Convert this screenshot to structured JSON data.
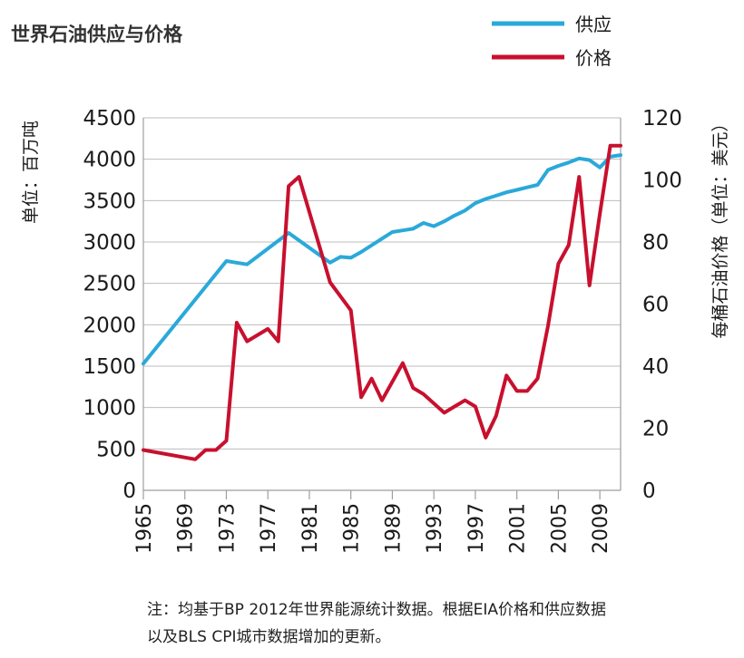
{
  "chart_data": {
    "type": "line",
    "title": "世界石油供应与价格",
    "ylabel_left": "单位：百万吨",
    "ylabel_right": "每桶石油价格（单位：美元）",
    "ylim_left": [
      0,
      4500
    ],
    "ylim_right": [
      0,
      120
    ],
    "yticks_left": [
      0,
      500,
      1000,
      1500,
      2000,
      2500,
      3000,
      3500,
      4000,
      4500
    ],
    "yticks_right": [
      0,
      20,
      40,
      60,
      80,
      100,
      120
    ],
    "xlim": [
      1965,
      2011
    ],
    "xticks": [
      1965,
      1969,
      1973,
      1977,
      1981,
      1985,
      1989,
      1993,
      1997,
      2001,
      2005,
      2009
    ],
    "grid": "horizontal",
    "legend": [
      {
        "name": "供应",
        "color": "#2aa9d9"
      },
      {
        "name": "价格",
        "color": "#c8102e"
      }
    ],
    "series": [
      {
        "name": "供应",
        "axis": "left",
        "color": "#2aa9d9",
        "x": [
          1965,
          1973,
          1975,
          1979,
          1983,
          1984,
          1985,
          1986,
          1988,
          1989,
          1990,
          1991,
          1992,
          1993,
          1994,
          1995,
          1996,
          1997,
          1998,
          1999,
          2000,
          2001,
          2002,
          2003,
          2004,
          2005,
          2006,
          2007,
          2008,
          2009,
          2010,
          2011
        ],
        "values": [
          1530,
          2770,
          2730,
          3110,
          2750,
          2820,
          2810,
          2880,
          3040,
          3120,
          3140,
          3160,
          3230,
          3190,
          3250,
          3320,
          3380,
          3470,
          3520,
          3560,
          3600,
          3630,
          3660,
          3690,
          3870,
          3920,
          3960,
          4010,
          3990,
          3900,
          4030,
          4050
        ]
      },
      {
        "name": "价格",
        "axis": "right",
        "color": "#c8102e",
        "x": [
          1965,
          1970,
          1971,
          1972,
          1973,
          1974,
          1975,
          1977,
          1978,
          1979,
          1980,
          1983,
          1985,
          1986,
          1987,
          1988,
          1990,
          1991,
          1992,
          1994,
          1995,
          1996,
          1997,
          1998,
          1999,
          2000,
          2001,
          2002,
          2003,
          2004,
          2005,
          2006,
          2007,
          2008,
          2009,
          2010,
          2011
        ],
        "values": [
          13,
          10,
          13,
          13,
          16,
          54,
          48,
          52,
          48,
          98,
          101,
          67,
          58,
          30,
          36,
          29,
          41,
          33,
          31,
          25,
          27,
          29,
          27,
          17,
          24,
          37,
          32,
          32,
          36,
          53,
          73,
          79,
          101,
          66,
          89,
          111,
          111
        ]
      }
    ]
  },
  "note": {
    "line1": "注：均基于BP 2012年世界能源统计数据。根据EIA价格和供应数据",
    "line2": "以及BLS CPI城市数据增加的更新。"
  }
}
